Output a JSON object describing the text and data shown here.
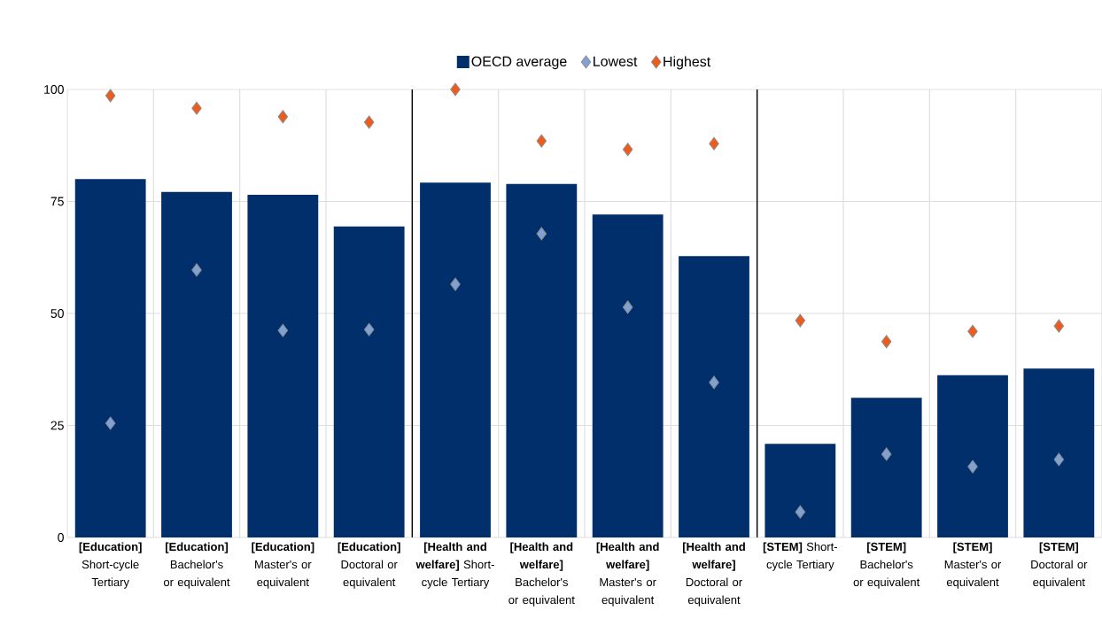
{
  "chart_data": {
    "type": "bar",
    "categories": [
      "**[Education]** Short-cycle Tertiary",
      "**[Education]** Bachelor's or equivalent",
      "**[Education]** Master's or equivalent",
      "**[Education]** Doctoral or equivalent",
      "**[Health and welfare]** Short-cycle Tertiary",
      "**[Health and welfare]** Bachelor's or equivalent",
      "**[Health and welfare]** Master's or equivalent",
      "**[Health and welfare]** Doctoral or equivalent",
      "**[STEM]** Short-cycle Tertiary",
      "**[STEM]** Bachelor's or equivalent",
      "**[STEM]** Master's or equivalent",
      "**[STEM]** Doctoral or equivalent"
    ],
    "series": [
      {
        "name": "OECD average",
        "color": "#002f6c",
        "values": [
          80.0,
          77.1,
          76.5,
          69.4,
          79.2,
          78.9,
          72.1,
          62.8,
          20.9,
          31.2,
          36.2,
          37.7
        ]
      },
      {
        "name": "Lowest",
        "type": "scatter",
        "marker": "diamond",
        "color": "#7fa2d2",
        "values": [
          25.5,
          59.7,
          46.2,
          46.4,
          56.5,
          67.8,
          51.4,
          34.6,
          5.7,
          18.6,
          15.8,
          17.4
        ]
      },
      {
        "name": "Highest",
        "type": "scatter",
        "marker": "diamond",
        "color": "#f05a1a",
        "values": [
          98.6,
          95.8,
          93.9,
          92.7,
          100.0,
          88.5,
          86.6,
          87.9,
          48.4,
          43.7,
          46.0,
          47.2
        ]
      }
    ],
    "ylim": [
      0,
      100
    ],
    "yticks": [
      0,
      25,
      50,
      75,
      100
    ],
    "grid": true,
    "legend": "top"
  }
}
